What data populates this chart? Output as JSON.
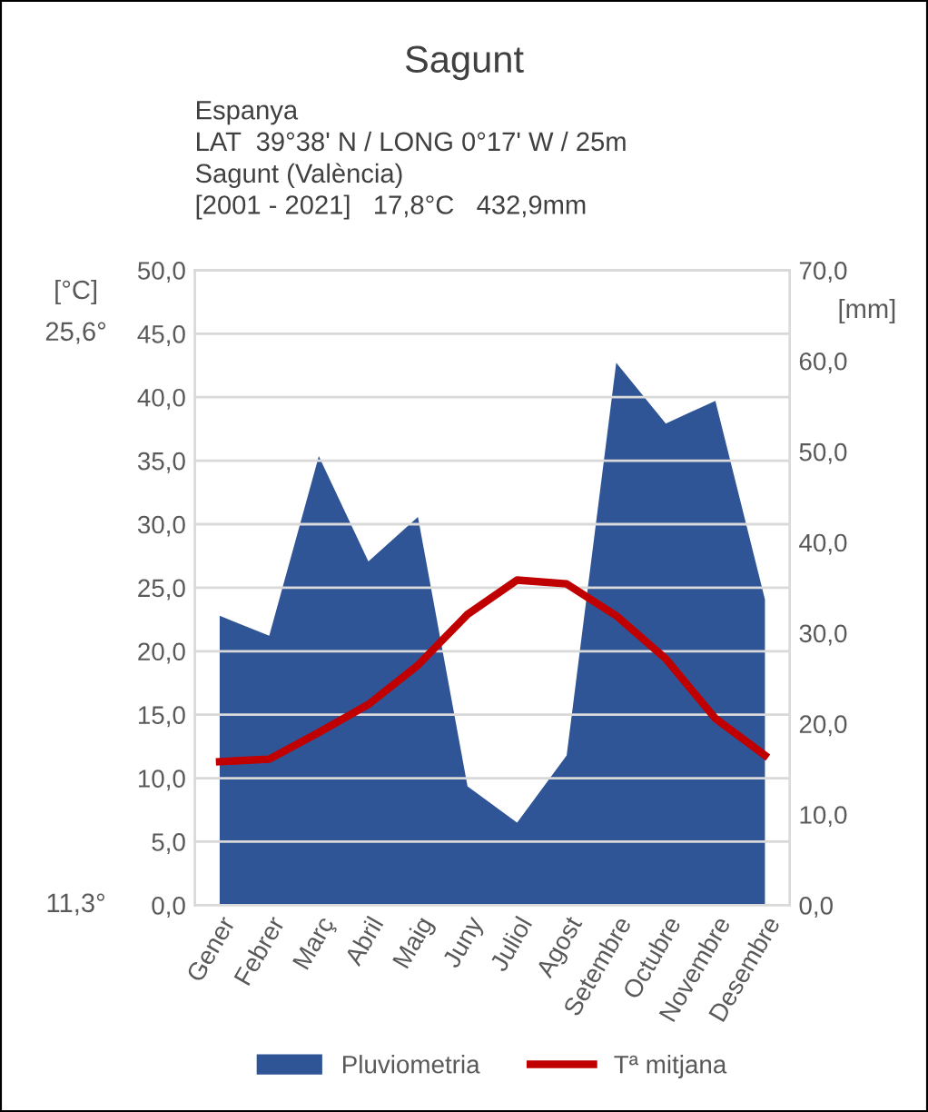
{
  "chart_data": {
    "type": "area",
    "title": "Sagunt",
    "subtitle": "Espanya\nLAT  39°38' N / LONG 0°17' W / 25m\nSagunt (València)\n[2001 - 2021]   17,8°C   432,9mm",
    "ylabel": "[°C]",
    "y2label": "[mm]",
    "categories": [
      "Gener",
      "Febrer",
      "Març",
      "Abril",
      "Maig",
      "Juny",
      "Juliol",
      "Agost",
      "Setembre",
      "Octubre",
      "Novembre",
      "Desembre"
    ],
    "series": [
      {
        "name": "Pluviometria",
        "axis": "y2",
        "color": "#2f5597",
        "values": [
          31.9,
          29.7,
          49.5,
          37.9,
          42.8,
          13.1,
          9.1,
          16.5,
          59.8,
          53.1,
          55.6,
          33.7
        ]
      },
      {
        "name": "Tª mitjana",
        "type": "line",
        "color": "#c00000",
        "values": [
          11.3,
          11.5,
          13.6,
          15.8,
          18.9,
          22.9,
          25.6,
          25.3,
          22.8,
          19.4,
          14.7,
          11.8
        ]
      }
    ],
    "ylim": [
      0,
      50
    ],
    "yticks": [
      {
        "value": 0,
        "label": "0,0"
      },
      {
        "value": 5,
        "label": "5,0"
      },
      {
        "value": 10,
        "label": "10,0"
      },
      {
        "value": 15,
        "label": "15,0"
      },
      {
        "value": 20,
        "label": "20,0"
      },
      {
        "value": 25,
        "label": "25,0"
      },
      {
        "value": 30,
        "label": "30,0"
      },
      {
        "value": 35,
        "label": "35,0"
      },
      {
        "value": 40,
        "label": "40,0"
      },
      {
        "value": 45,
        "label": "45,0"
      },
      {
        "value": 50,
        "label": "50,0"
      }
    ],
    "y2lim": [
      0,
      70
    ],
    "y2ticks": [
      {
        "value": 0,
        "label": "0,0"
      },
      {
        "value": 10,
        "label": "10,0"
      },
      {
        "value": 20,
        "label": "20,0"
      },
      {
        "value": 30,
        "label": "30,0"
      },
      {
        "value": 40,
        "label": "40,0"
      },
      {
        "value": 50,
        "label": "50,0"
      },
      {
        "value": 60,
        "label": "60,0"
      },
      {
        "value": 70,
        "label": "70,0"
      }
    ],
    "annotations": [
      "25,6°",
      "11,3°"
    ],
    "grid": "y",
    "legend": "bottom",
    "marker": "none",
    "line_style": "solid"
  }
}
